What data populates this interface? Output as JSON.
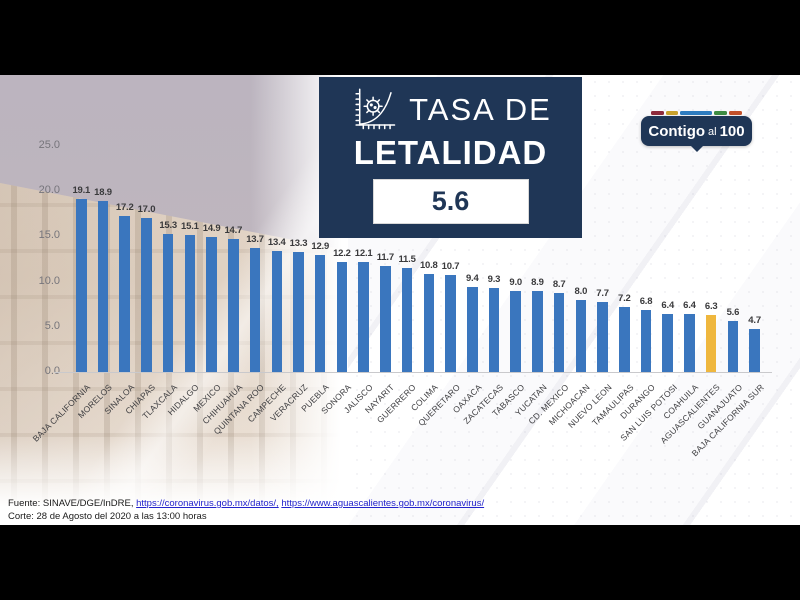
{
  "title_card": {
    "line1": "TASA DE",
    "line2": "LETALIDAD",
    "rate_value": "5.6",
    "bg_color": "#1F3656"
  },
  "logo": {
    "word1": "Contigo",
    "word2": "al",
    "word3": "100",
    "dash_colors": [
      "#8E2B3C",
      "#C9A22C",
      "#2E7CC0",
      "#3E8C43",
      "#C2512B"
    ]
  },
  "chart_data": {
    "type": "bar",
    "title": "TASA DE LETALIDAD",
    "national_rate": 5.6,
    "categories": [
      "BAJA CALIFORNIA",
      "MORELOS",
      "SINALOA",
      "CHIAPAS",
      "TLAXCALA",
      "HIDALGO",
      "MEXICO",
      "CHIHUAHUA",
      "QUINTANA ROO",
      "CAMPECHE",
      "VERACRUZ",
      "PUEBLA",
      "SONORA",
      "JALISCO",
      "NAYARIT",
      "GUERRERO",
      "COLIMA",
      "QUERETARO",
      "OAXACA",
      "ZACATECAS",
      "TABASCO",
      "YUCATAN",
      "CD. MEXICO",
      "MICHOACAN",
      "NUEVO LEON",
      "TAMAULIPAS",
      "DURANGO",
      "SAN LUIS POTOSI",
      "COAHUILA",
      "AGUASCALIENTES",
      "GUANAJUATO",
      "BAJA CALIFORNIA SUR"
    ],
    "values": [
      19.1,
      18.9,
      17.2,
      17.0,
      15.3,
      15.1,
      14.9,
      14.7,
      13.7,
      13.4,
      13.3,
      12.9,
      12.2,
      12.1,
      11.7,
      11.5,
      10.8,
      10.7,
      9.4,
      9.3,
      9.0,
      8.9,
      8.7,
      8.0,
      7.7,
      7.2,
      6.8,
      6.4,
      6.4,
      6.3,
      5.6,
      4.7
    ],
    "highlight_category": "AGUASCALIENTES",
    "highlight_index": 29,
    "bar_color": "#3A76BE",
    "highlight_color": "#EFB73E",
    "ylim": [
      0,
      25
    ],
    "ytick_values": [
      0,
      5,
      10,
      15,
      20,
      25
    ],
    "ytick_labels": [
      "0.0",
      "5.0",
      "10.0",
      "15.0",
      "20.0",
      "25.0"
    ],
    "grid": false,
    "legend": false,
    "value_labels": true,
    "xlabel_rotation_deg": -45
  },
  "footer": {
    "fuente_label": "Fuente: SINAVE/DGE/InDRE, ",
    "link1": "https://coronavirus.gob.mx/datos/,",
    "sep": " ",
    "link2": "https://www.aguascalientes.gob.mx/coronavirus/",
    "corte": "Corte: 28 de Agosto del 2020 a las 13:00 horas"
  }
}
